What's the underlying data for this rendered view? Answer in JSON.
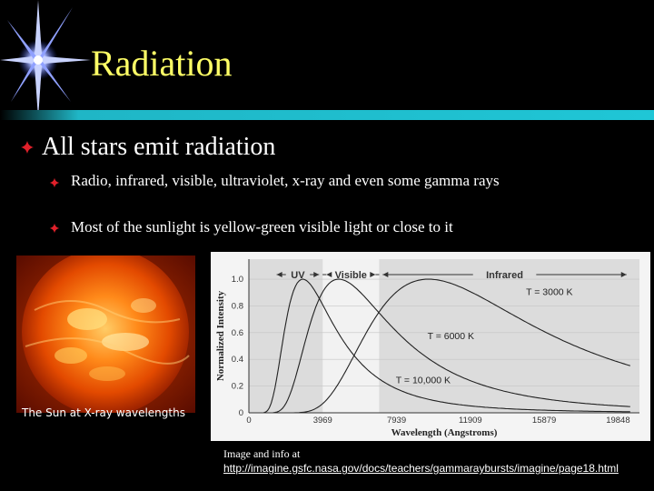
{
  "slide": {
    "title": "Radiation",
    "accent_color": "#ffff66",
    "rule_color": "#1fb6c6"
  },
  "bullets": {
    "main": "All stars emit radiation",
    "sub": [
      "Radio, infrared, visible, ultraviolet, x-ray and even some gamma rays",
      "Most of the sunlight is yellow-green visible light or close to it"
    ],
    "icon": "diamond-bullet-icon"
  },
  "sun_image": {
    "caption": "The Sun at X-ray wavelengths"
  },
  "credit": {
    "line1": "Image and info at",
    "link": "http://imagine.gsfc.nasa.gov/docs/teachers/gammaraybursts/imagine/page18.html"
  },
  "chart_data": {
    "type": "line",
    "xlabel": "Wavelength  (Angstroms)",
    "ylabel": "Normalized Intensity",
    "xlim": [
      0,
      21000
    ],
    "ylim": [
      0,
      1.15
    ],
    "x_ticks": [
      0,
      3969,
      7939,
      11909,
      15879,
      19848
    ],
    "y_ticks": [
      "0",
      "0.2",
      "0.4",
      "0.6",
      "0.8",
      "1.0"
    ],
    "bands": [
      {
        "name": "UV",
        "range": [
          1300,
          3969
        ]
      },
      {
        "name": "Visible",
        "range": [
          3969,
          7000
        ]
      },
      {
        "name": "Infrared",
        "range": [
          7000,
          20500
        ]
      }
    ],
    "series": [
      {
        "name": "T = 3000 K",
        "peak_angstrom": 9660
      },
      {
        "name": "T = 6000 K",
        "peak_angstrom": 4830
      },
      {
        "name": "T = 10,000 K",
        "peak_angstrom": 2898
      }
    ],
    "grid": true
  }
}
